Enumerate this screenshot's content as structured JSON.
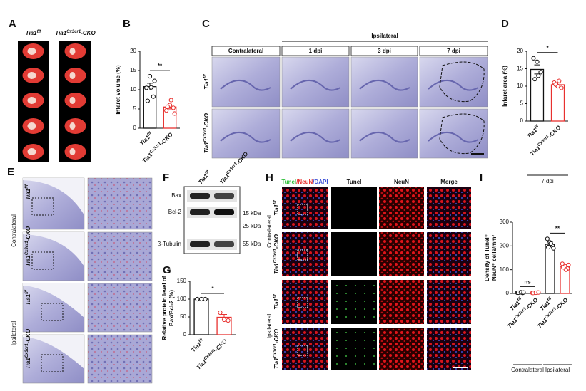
{
  "panel_labels": [
    "A",
    "B",
    "C",
    "D",
    "E",
    "F",
    "G",
    "H",
    "I"
  ],
  "genotypes": [
    {
      "base": "Tia1",
      "sup": "f/f"
    },
    {
      "base": "Tia1",
      "sup": "Cx3cr1",
      "suffix": "-CKO"
    }
  ],
  "panel_C": {
    "group": "Ipsilateral",
    "columns": [
      "Contralateral",
      "1 dpi",
      "3 dpi",
      "7 dpi"
    ]
  },
  "panel_E": {
    "groups": [
      "Contralateral",
      "Ipsilateral"
    ]
  },
  "panel_F": {
    "bands": [
      "Bax",
      "Bcl-2",
      "β-Tubulin"
    ],
    "markers": [
      "15 kDa",
      "25 kDa",
      "55 kDa"
    ]
  },
  "panel_H": {
    "merged_header": [
      {
        "text": "Tunel",
        "color": "#2fbf3a"
      },
      {
        "text": "/NeuN",
        "color": "#e8312f"
      },
      {
        "text": "/DAPI",
        "color": "#3b4fd8"
      }
    ],
    "columns": [
      {
        "text": "Tunel",
        "color": "#2fbf3a"
      },
      {
        "text": "NeuN",
        "color": "#e8312f"
      },
      {
        "text": "Merge",
        "color": "#111111"
      }
    ],
    "groups": [
      "Contralateral",
      "Ipsilateral"
    ]
  },
  "chart_data": [
    {
      "type": "bar",
      "ylabel": [
        "Infarct volume (%)"
      ],
      "categories": [
        {
          "base": "Tia1",
          "sup": "f/f"
        },
        {
          "base": "Tia1",
          "sup": "Cx3cr1",
          "suffix": "-CKO"
        }
      ],
      "values": [
        10.8,
        5.5
      ],
      "errors": [
        0.9,
        0.5
      ],
      "colors": [
        "#111111",
        "#e8312f"
      ],
      "points": [
        [
          10.5,
          13.5,
          8.2,
          7.1,
          10.6,
          12.3
        ],
        [
          4.6,
          6.0,
          5.3,
          5.6,
          7.3,
          3.8
        ]
      ],
      "ylim": [
        0,
        20
      ],
      "yticks": [
        0,
        5,
        10,
        15,
        20
      ],
      "significance": [
        "**"
      ]
    },
    {
      "type": "bar",
      "ylabel": [
        "Infarct area (%)"
      ],
      "xlabel": "7 dpi",
      "categories": [
        {
          "base": "Tia1",
          "sup": "f/f"
        },
        {
          "base": "Tia1",
          "sup": "Cx3cr1",
          "suffix": "-CKO"
        }
      ],
      "values": [
        14.8,
        10.4
      ],
      "errors": [
        1.3,
        0.5
      ],
      "colors": [
        "#111111",
        "#e8312f"
      ],
      "points": [
        [
          18,
          17,
          14,
          12,
          13
        ],
        [
          11,
          10,
          9.5,
          10.5,
          11.5
        ]
      ],
      "ylim": [
        0,
        20
      ],
      "yticks": [
        0,
        5,
        10,
        15,
        20
      ],
      "significance": [
        "*"
      ]
    },
    {
      "type": "bar",
      "ylabel": [
        "Relative protein level of",
        "Bax/Bcl-2 (%)"
      ],
      "categories": [
        {
          "base": "Tia1",
          "sup": "f/f"
        },
        {
          "base": "Tia1",
          "sup": "Cx3cr1",
          "suffix": "-CKO"
        }
      ],
      "values": [
        100,
        49
      ],
      "errors": [
        1,
        8
      ],
      "colors": [
        "#111111",
        "#e8312f"
      ],
      "points": [
        [
          100,
          100,
          100
        ],
        [
          62,
          42,
          40
        ]
      ],
      "ylim": [
        0,
        150
      ],
      "yticks": [
        0,
        50,
        100,
        150
      ],
      "significance": [
        "*"
      ]
    },
    {
      "type": "bar",
      "ylabel": [
        "Density of Tunel⁺",
        "NeuN⁺ cells/mm²"
      ],
      "categories": [
        {
          "base": "Tia1",
          "sup": "f/f"
        },
        {
          "base": "Tia1",
          "sup": "Cx3cr1",
          "suffix": "-CKO"
        },
        {
          "base": "Tia1",
          "sup": "f/f"
        },
        {
          "base": "Tia1",
          "sup": "Cx3cr1",
          "suffix": "-CKO"
        }
      ],
      "values": [
        3,
        3,
        207,
        114
      ],
      "errors": [
        1,
        1,
        10,
        8
      ],
      "colors": [
        "#111111",
        "#e8312f",
        "#111111",
        "#e8312f"
      ],
      "points": [
        [
          3,
          4,
          2,
          3,
          5,
          4
        ],
        [
          2,
          3,
          4,
          2,
          3,
          4
        ],
        [
          230,
          215,
          200,
          195,
          210,
          190
        ],
        [
          125,
          115,
          105,
          110,
          100,
          120
        ]
      ],
      "ylim": [
        0,
        300
      ],
      "yticks": [
        0,
        100,
        200,
        300
      ],
      "significance": [
        "ns",
        "**"
      ],
      "groups": [
        "Contralateral",
        "Ipsilateral"
      ]
    }
  ]
}
